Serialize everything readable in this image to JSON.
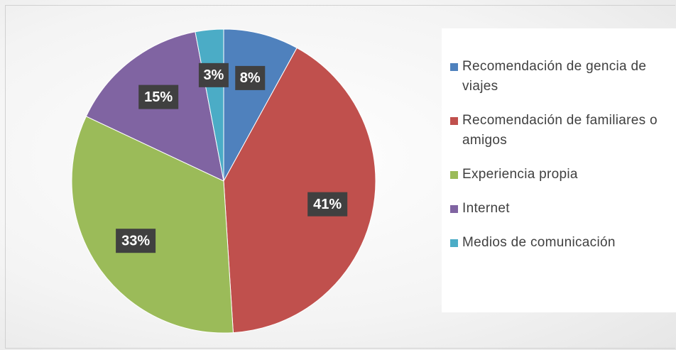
{
  "chart_data": {
    "type": "pie",
    "categories": [
      "Recomendación de gencia de viajes",
      "Recomendación de familiares o amigos",
      "Experiencia propia",
      "Internet",
      "Medios de comunicación"
    ],
    "values": [
      8,
      41,
      33,
      15,
      3
    ],
    "value_labels": [
      "8%",
      "41%",
      "33%",
      "15%",
      "3%"
    ],
    "colors": [
      "#4f81bd",
      "#c0504d",
      "#9bbb59",
      "#8064a2",
      "#4bacc6"
    ],
    "legend": "right"
  }
}
